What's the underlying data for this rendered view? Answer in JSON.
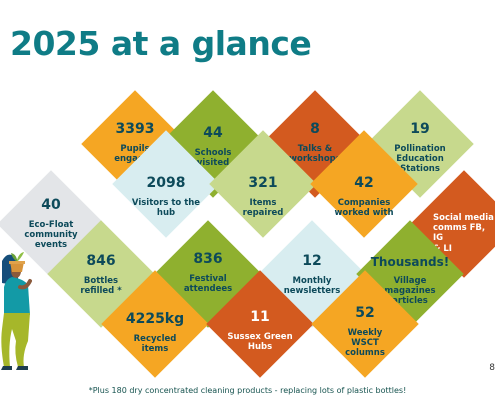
{
  "title": "2025 at a glance",
  "colors": {
    "title": "#0f7c86",
    "orange": "#f5a623",
    "green": "#8fb02f",
    "light_green": "#c7d98d",
    "rust": "#d35a1f",
    "light_blue": "#d8edf0",
    "grey": "#e3e5e8",
    "text": "#0d4a5a"
  },
  "stats": [
    {
      "value": "3393",
      "label": "Pupils\nengaged",
      "color": "orange"
    },
    {
      "value": "44",
      "label": "Schools\nvisited",
      "color": "green"
    },
    {
      "value": "8",
      "label": "Talks &\nworkshops",
      "color": "rust"
    },
    {
      "value": "19",
      "label": "Pollination\nEducation\nStations",
      "color": "light_green"
    },
    {
      "value": "2098",
      "label": "Visitors to the\nhub",
      "color": "light_blue"
    },
    {
      "value": "321",
      "label": "Items\nrepaired",
      "color": "light_green"
    },
    {
      "value": "42",
      "label": "Companies\nworked with",
      "color": "orange"
    },
    {
      "value": "40",
      "label": "Eco-Float\ncommunity\nevents",
      "color": "grey"
    },
    {
      "value": "",
      "label": "Social media\ncomms FB, IG\n& LI",
      "color": "rust"
    },
    {
      "value": "846",
      "label": "Bottles\nrefilled *",
      "color": "light_green"
    },
    {
      "value": "836",
      "label": "Festival\nattendees",
      "color": "green"
    },
    {
      "value": "12",
      "label": "Monthly\nnewsletters",
      "color": "light_blue"
    },
    {
      "value": "Thousands!",
      "label": "Village\nmagazines\narticles",
      "color": "green"
    },
    {
      "value": "4225kg",
      "label": "Recycled\nitems",
      "color": "orange"
    },
    {
      "value": "11",
      "label": "Sussex Green\nHubs",
      "color": "rust"
    },
    {
      "value": "52",
      "label": "Weekly\nWSCT\ncolumns",
      "color": "orange"
    }
  ],
  "footnote": "*Plus 180 dry concentrated cleaning products - replacing lots of plastic bottles!",
  "page_number": "8",
  "figure_icons": [
    "person-icon",
    "plant-pot-icon"
  ]
}
